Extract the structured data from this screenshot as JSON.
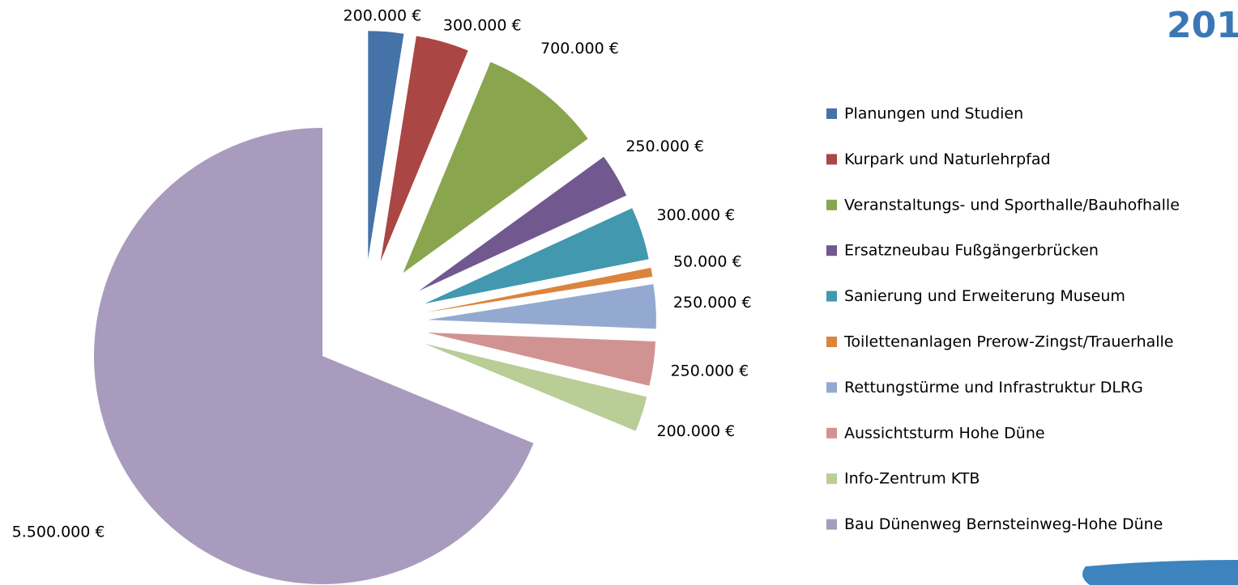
{
  "chart_data": {
    "type": "pie",
    "title": "201",
    "categories": [
      "Planungen und Studien",
      "Kurpark und Naturlehrpfad",
      "Veranstaltungs- und Sporthalle/Bauhofhalle",
      "Ersatzneubau Fußgängerbrücken",
      "Sanierung und Erweiterung Museum",
      "Toilettenanlagen Prerow-Zingst/Trauerhalle",
      "Rettungstürme und Infrastruktur DLRG",
      "Aussichtsturm Hohe Düne",
      "Info-Zentrum KTB",
      "Bau Dünenweg Bernsteinweg-Hohe Düne"
    ],
    "values": [
      200000,
      300000,
      700000,
      250000,
      300000,
      50000,
      250000,
      250000,
      200000,
      5500000
    ],
    "value_labels": [
      "200.000 €",
      "300.000 €",
      "700.000 €",
      "250.000 €",
      "300.000 €",
      "50.000 €",
      "250.000 €",
      "250.000 €",
      "200.000 €",
      "5.500.000 €"
    ],
    "colors": [
      "#4572a7",
      "#aa4643",
      "#89a54e",
      "#71588f",
      "#4198af",
      "#db843d",
      "#93a9cf",
      "#d19392",
      "#b9cd96",
      "#a99bbd"
    ],
    "explode": [
      true,
      true,
      true,
      true,
      true,
      true,
      true,
      true,
      true,
      false
    ],
    "legend": "right"
  }
}
